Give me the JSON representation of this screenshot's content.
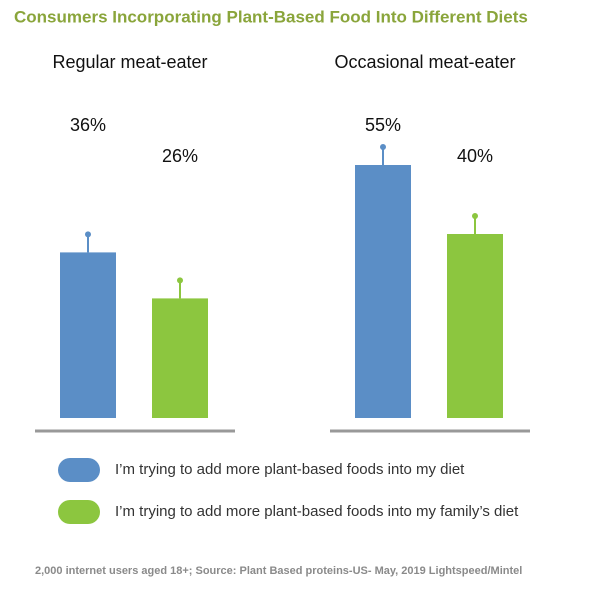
{
  "chart_data": {
    "type": "bar",
    "title": "Consumers Incorporating Plant-Based Food Into Different Diets",
    "categories": [
      "Regular meat-eater",
      "Occasional meat-eater"
    ],
    "series": [
      {
        "name": "I’m trying to add more plant-based foods into my diet",
        "color": "#5b8ec6",
        "values": [
          36,
          55
        ],
        "value_labels": [
          "36%",
          "55%"
        ]
      },
      {
        "name": "I’m trying to add more plant-based foods into my family’s diet",
        "color": "#8cc63f",
        "values": [
          26,
          40
        ],
        "value_labels": [
          "26%",
          "40%"
        ]
      }
    ],
    "source": "2,000 internet users aged 18+; Source: Plant Based proteins-US- May, 2019 Lightspeed/Mintel"
  }
}
